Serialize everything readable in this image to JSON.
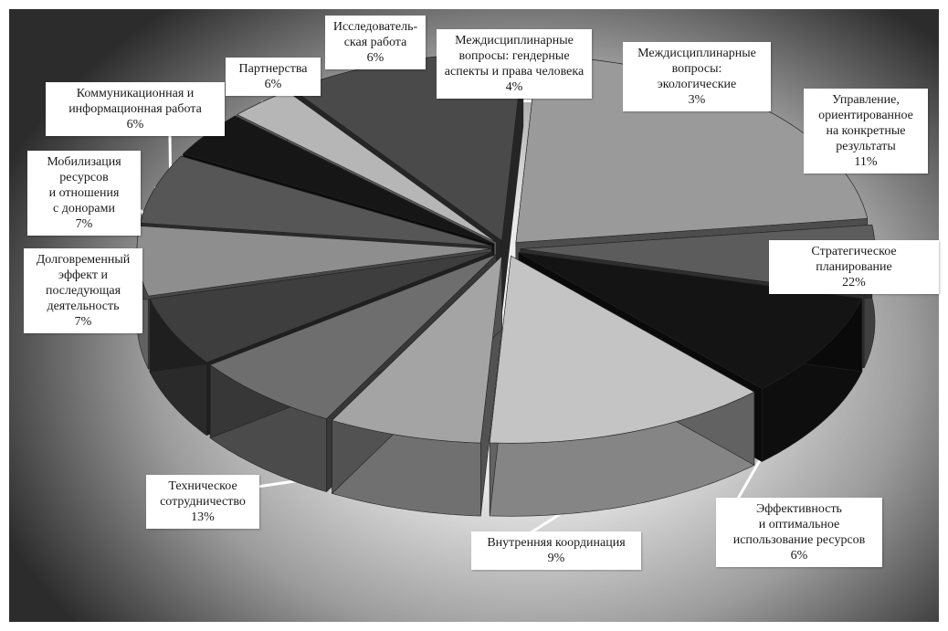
{
  "chart_data": {
    "type": "pie",
    "title": "",
    "slices": [
      {
        "label": "Стратегическое\nпланирование",
        "value": 22,
        "value_label": "22%",
        "color": "#9a9a9a"
      },
      {
        "label": "Эффективность\nи оптимальное\nиспользование ресурсов",
        "value": 6,
        "value_label": "6%",
        "color": "#5c5c5c"
      },
      {
        "label": "Внутренняя координация",
        "value": 9,
        "value_label": "9%",
        "color": "#141414"
      },
      {
        "label": "Техническое\nсотрудничество",
        "value": 13,
        "value_label": "13%",
        "color": "#c4c4c4"
      },
      {
        "label": "Долговременный\nэффект и\nпоследующая\nдеятельность",
        "value": 7,
        "value_label": "7%",
        "color": "#a4a4a4"
      },
      {
        "label": "Мобилизация\nресурсов\nи отношения\nс донорами",
        "value": 7,
        "value_label": "7%",
        "color": "#6e6e6e"
      },
      {
        "label": "Коммуникационная и\nинформационная работа",
        "value": 6,
        "value_label": "6%",
        "color": "#3e3e3e"
      },
      {
        "label": "Партнерства",
        "value": 6,
        "value_label": "6%",
        "color": "#8e8e8e"
      },
      {
        "label": "Исследователь-\nская работа",
        "value": 6,
        "value_label": "6%",
        "color": "#565656"
      },
      {
        "label": "Междисциплинарные\nвопросы: гендерные\nаспекты и права человека",
        "value": 4,
        "value_label": "4%",
        "color": "#161616"
      },
      {
        "label": "Междисциплинарные\nвопросы:\nэкологические",
        "value": 3,
        "value_label": "3%",
        "color": "#b6b6b6"
      },
      {
        "label": "Управление,\nориентированное\nна конкретные\nрезультаты",
        "value": 11,
        "value_label": "11%",
        "color": "#4a4a4a"
      }
    ],
    "legend": "none",
    "style": "3d-exploded"
  }
}
